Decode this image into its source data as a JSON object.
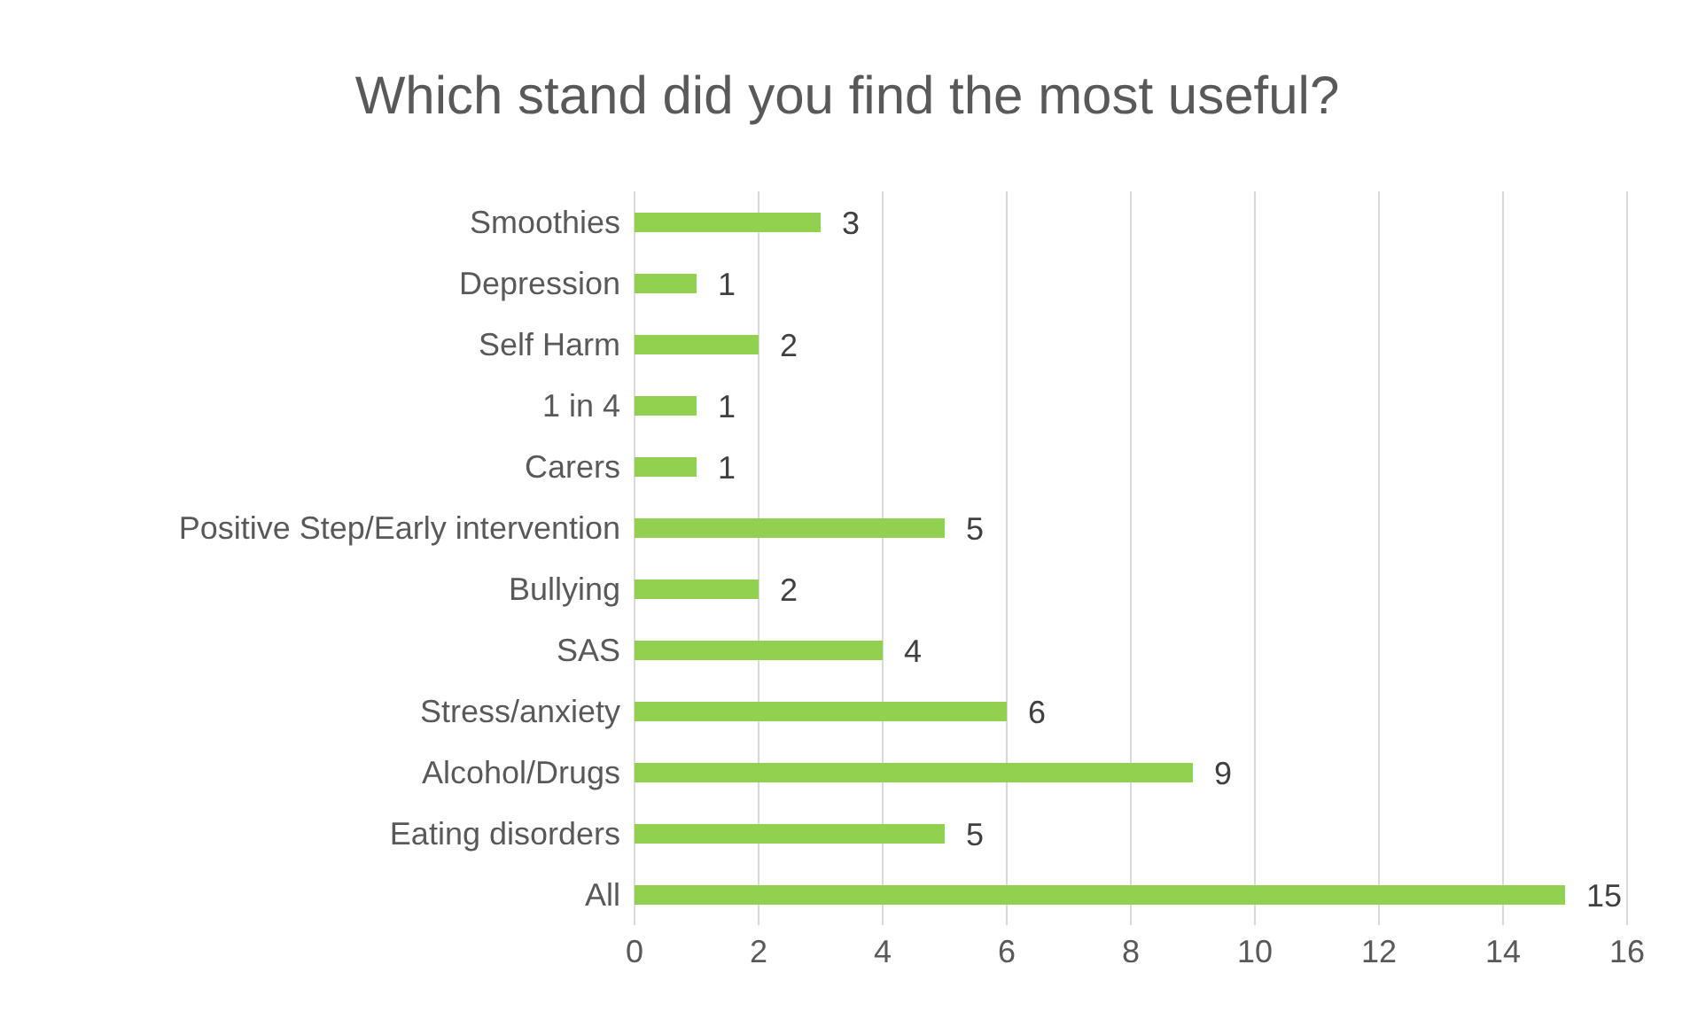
{
  "chart_data": {
    "type": "bar",
    "orientation": "horizontal",
    "title": "Which stand did you find the most useful?",
    "categories": [
      "Smoothies",
      "Depression",
      "Self Harm",
      "1 in 4",
      "Carers",
      "Positive Step/Early intervention",
      "Bullying",
      "SAS",
      "Stress/anxiety",
      "Alcohol/Drugs",
      "Eating disorders",
      "All"
    ],
    "values": [
      3,
      1,
      2,
      1,
      1,
      5,
      2,
      4,
      6,
      9,
      5,
      15
    ],
    "color": "#92d050",
    "xlim": [
      0,
      16
    ],
    "xticks": [
      0,
      2,
      4,
      6,
      8,
      10,
      12,
      14,
      16
    ],
    "grid": "x",
    "data_labels": true
  }
}
